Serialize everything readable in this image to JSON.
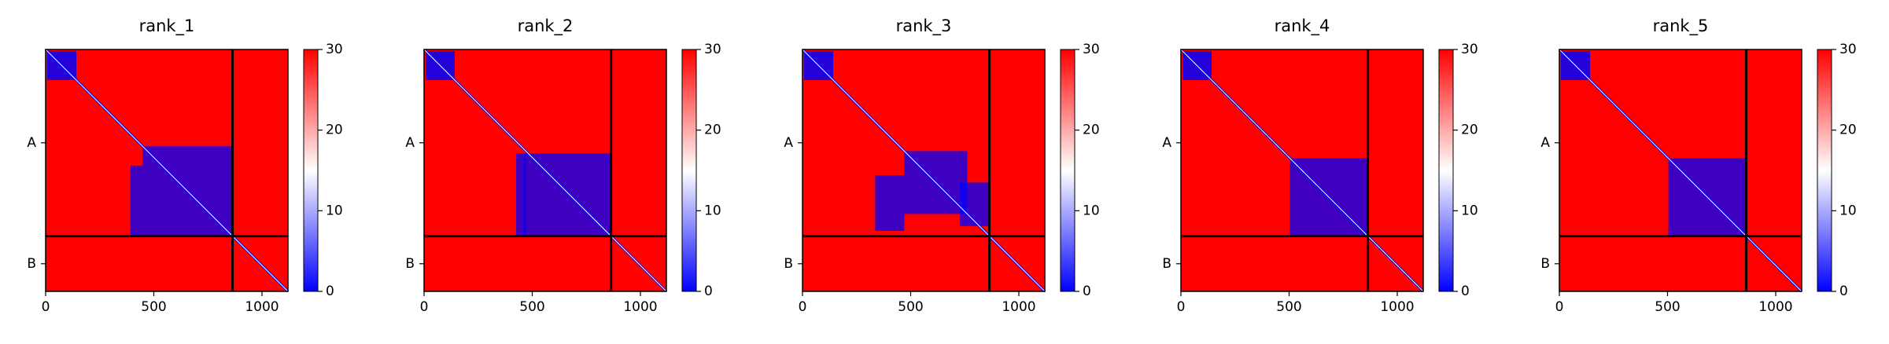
{
  "chart_data": [
    {
      "type": "heatmap",
      "title": "rank_1",
      "xlim": [
        0,
        1120
      ],
      "ylim": [
        1120,
        0
      ],
      "xticks": [
        0,
        500,
        1000
      ],
      "yticks": [
        {
          "value": 432,
          "label": "A"
        },
        {
          "value": 992,
          "label": "B"
        }
      ],
      "chain_breaks": [
        864
      ],
      "clim": [
        0,
        30
      ],
      "cticks": [
        0,
        10,
        20,
        30
      ],
      "colormap": [
        "#0000ff",
        "#ffffff",
        "#ff0000"
      ]
    },
    {
      "type": "heatmap",
      "title": "rank_2",
      "xlim": [
        0,
        1120
      ],
      "ylim": [
        1120,
        0
      ],
      "xticks": [
        0,
        500,
        1000
      ],
      "yticks": [
        {
          "value": 432,
          "label": "A"
        },
        {
          "value": 992,
          "label": "B"
        }
      ],
      "chain_breaks": [
        864
      ],
      "clim": [
        0,
        30
      ],
      "cticks": [
        0,
        10,
        20,
        30
      ],
      "colormap": [
        "#0000ff",
        "#ffffff",
        "#ff0000"
      ]
    },
    {
      "type": "heatmap",
      "title": "rank_3",
      "xlim": [
        0,
        1120
      ],
      "ylim": [
        1120,
        0
      ],
      "xticks": [
        0,
        500,
        1000
      ],
      "yticks": [
        {
          "value": 432,
          "label": "A"
        },
        {
          "value": 992,
          "label": "B"
        }
      ],
      "chain_breaks": [
        864
      ],
      "clim": [
        0,
        30
      ],
      "cticks": [
        0,
        10,
        20,
        30
      ],
      "colormap": [
        "#0000ff",
        "#ffffff",
        "#ff0000"
      ]
    },
    {
      "type": "heatmap",
      "title": "rank_4",
      "xlim": [
        0,
        1120
      ],
      "ylim": [
        1120,
        0
      ],
      "xticks": [
        0,
        500,
        1000
      ],
      "yticks": [
        {
          "value": 432,
          "label": "A"
        },
        {
          "value": 992,
          "label": "B"
        }
      ],
      "chain_breaks": [
        864
      ],
      "clim": [
        0,
        30
      ],
      "cticks": [
        0,
        10,
        20,
        30
      ],
      "colormap": [
        "#0000ff",
        "#ffffff",
        "#ff0000"
      ]
    },
    {
      "type": "heatmap",
      "title": "rank_5",
      "xlim": [
        0,
        1120
      ],
      "ylim": [
        1120,
        0
      ],
      "xticks": [
        0,
        500,
        1000
      ],
      "yticks": [
        {
          "value": 432,
          "label": "A"
        },
        {
          "value": 992,
          "label": "B"
        }
      ],
      "chain_breaks": [
        864
      ],
      "clim": [
        0,
        30
      ],
      "cticks": [
        0,
        10,
        20,
        30
      ],
      "colormap": [
        "#0000ff",
        "#ffffff",
        "#ff0000"
      ]
    }
  ]
}
